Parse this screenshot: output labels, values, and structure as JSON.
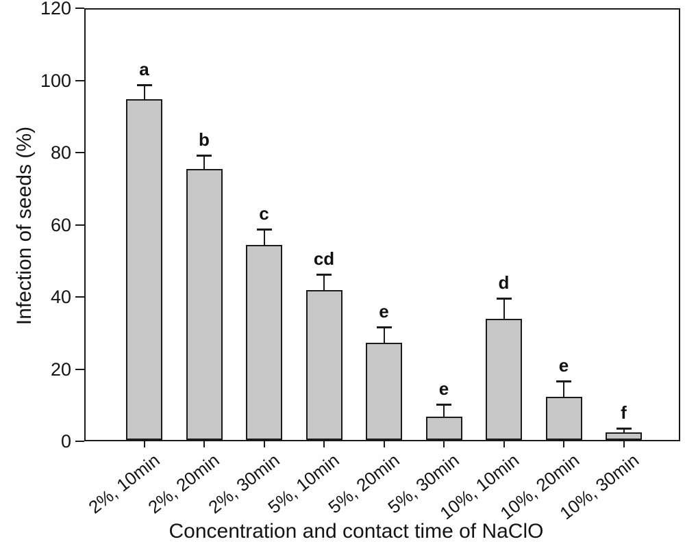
{
  "figure": {
    "background_color": "#ffffff",
    "bar_fill_color": "#c7c7c7",
    "bar_border_color": "#1a1a1a",
    "axis_color": "#1a1a1a"
  },
  "chart_data": {
    "type": "bar",
    "title": "",
    "xlabel": "Concentration and contact time of NaClO",
    "ylabel": "Infection of seeds (%)",
    "ylim": [
      0,
      120
    ],
    "yticks": [
      0,
      20,
      40,
      60,
      80,
      100,
      120
    ],
    "grid": false,
    "legend": "none",
    "categories": [
      "2%, 10min",
      "2%, 20min",
      "2%, 30min",
      "5%, 10min",
      "5%, 20min",
      "5%, 30min",
      "10%, 10min",
      "10%, 20min",
      "10%, 30min"
    ],
    "series": [
      {
        "name": "Infection of seeds",
        "values": [
          94.5,
          75,
          54,
          41.5,
          27,
          6.5,
          33.5,
          12,
          2
        ],
        "error_upper": [
          4,
          4,
          4.5,
          4.5,
          4.5,
          3.5,
          6,
          4.5,
          1.5
        ],
        "significance_letters": [
          "a",
          "b",
          "c",
          "cd",
          "e",
          "e",
          "d",
          "e",
          "f"
        ]
      }
    ]
  }
}
